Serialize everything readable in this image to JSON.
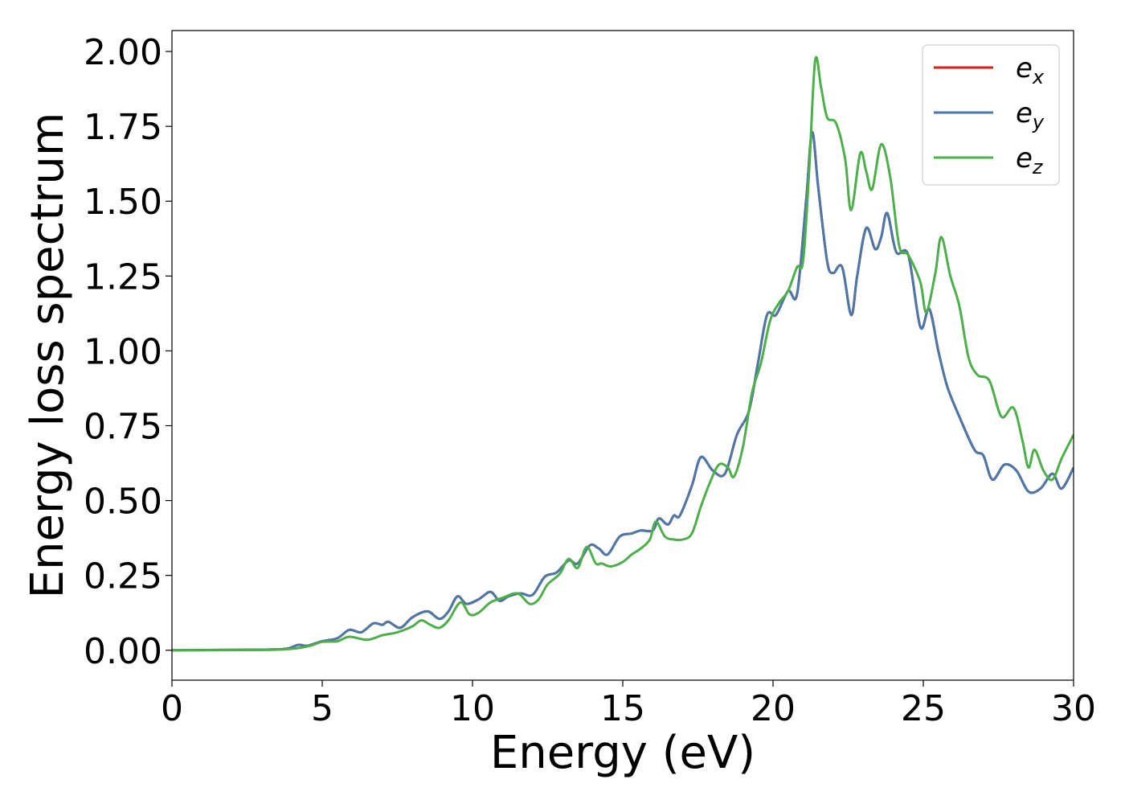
{
  "chart_data": {
    "type": "line",
    "xlabel": "Energy (eV)",
    "ylabel": "Energy loss spectrum",
    "xlim": [
      0,
      30
    ],
    "ylim": [
      -0.1,
      2.07
    ],
    "xticks": [
      0,
      5,
      10,
      15,
      20,
      25,
      30
    ],
    "xtick_labels": [
      "0",
      "5",
      "10",
      "15",
      "20",
      "25",
      "30"
    ],
    "yticks": [
      0,
      0.25,
      0.5,
      0.75,
      1.0,
      1.25,
      1.5,
      1.75,
      2.0
    ],
    "ytick_labels": [
      "0.00",
      "0.25",
      "0.50",
      "0.75",
      "1.00",
      "1.25",
      "1.50",
      "1.75",
      "2.00"
    ],
    "grid": false,
    "legend_position": "top-right",
    "series": [
      {
        "name": "e_x",
        "label_base": "e",
        "label_sub": "x",
        "color": "#e41a1c",
        "points": [
          [
            0,
            0
          ],
          [
            3,
            0.002
          ],
          [
            3.8,
            0.005
          ],
          [
            4.2,
            0.018
          ],
          [
            4.5,
            0.015
          ],
          [
            5,
            0.03
          ],
          [
            5.5,
            0.04
          ],
          [
            5.9,
            0.068
          ],
          [
            6.3,
            0.06
          ],
          [
            6.7,
            0.09
          ],
          [
            7.0,
            0.085
          ],
          [
            7.2,
            0.095
          ],
          [
            7.6,
            0.075
          ],
          [
            8.0,
            0.11
          ],
          [
            8.5,
            0.13
          ],
          [
            8.9,
            0.105
          ],
          [
            9.2,
            0.13
          ],
          [
            9.5,
            0.18
          ],
          [
            9.8,
            0.155
          ],
          [
            10.2,
            0.17
          ],
          [
            10.6,
            0.195
          ],
          [
            10.9,
            0.165
          ],
          [
            11.2,
            0.18
          ],
          [
            11.6,
            0.19
          ],
          [
            12.0,
            0.185
          ],
          [
            12.4,
            0.245
          ],
          [
            12.8,
            0.26
          ],
          [
            13.2,
            0.3
          ],
          [
            13.5,
            0.29
          ],
          [
            13.9,
            0.35
          ],
          [
            14.2,
            0.34
          ],
          [
            14.5,
            0.32
          ],
          [
            14.9,
            0.38
          ],
          [
            15.3,
            0.39
          ],
          [
            15.6,
            0.4
          ],
          [
            16.0,
            0.4
          ],
          [
            16.2,
            0.44
          ],
          [
            16.5,
            0.42
          ],
          [
            16.7,
            0.45
          ],
          [
            16.9,
            0.45
          ],
          [
            17.3,
            0.55
          ],
          [
            17.6,
            0.645
          ],
          [
            18.0,
            0.6
          ],
          [
            18.4,
            0.59
          ],
          [
            18.8,
            0.72
          ],
          [
            19.2,
            0.8
          ],
          [
            19.5,
            0.96
          ],
          [
            19.8,
            1.12
          ],
          [
            20.1,
            1.12
          ],
          [
            20.5,
            1.2
          ],
          [
            20.8,
            1.19
          ],
          [
            21.1,
            1.5
          ],
          [
            21.3,
            1.73
          ],
          [
            21.5,
            1.55
          ],
          [
            21.8,
            1.3
          ],
          [
            22.0,
            1.26
          ],
          [
            22.3,
            1.28
          ],
          [
            22.6,
            1.12
          ],
          [
            22.8,
            1.25
          ],
          [
            23.1,
            1.41
          ],
          [
            23.4,
            1.34
          ],
          [
            23.6,
            1.38
          ],
          [
            23.8,
            1.46
          ],
          [
            24.1,
            1.33
          ],
          [
            24.5,
            1.32
          ],
          [
            24.9,
            1.08
          ],
          [
            25.2,
            1.14
          ],
          [
            25.5,
            1.0
          ],
          [
            25.8,
            0.88
          ],
          [
            26.2,
            0.78
          ],
          [
            26.7,
            0.67
          ],
          [
            27.0,
            0.65
          ],
          [
            27.3,
            0.57
          ],
          [
            27.7,
            0.62
          ],
          [
            28.1,
            0.6
          ],
          [
            28.5,
            0.53
          ],
          [
            28.9,
            0.54
          ],
          [
            29.3,
            0.59
          ],
          [
            29.6,
            0.54
          ],
          [
            30.0,
            0.61
          ]
        ]
      },
      {
        "name": "e_y",
        "label_base": "e",
        "label_sub": "y",
        "color": "#4a78a8",
        "points": [
          [
            0,
            0
          ],
          [
            3,
            0.002
          ],
          [
            3.8,
            0.005
          ],
          [
            4.2,
            0.018
          ],
          [
            4.5,
            0.015
          ],
          [
            5,
            0.03
          ],
          [
            5.5,
            0.04
          ],
          [
            5.9,
            0.068
          ],
          [
            6.3,
            0.06
          ],
          [
            6.7,
            0.09
          ],
          [
            7.0,
            0.085
          ],
          [
            7.2,
            0.095
          ],
          [
            7.6,
            0.075
          ],
          [
            8.0,
            0.11
          ],
          [
            8.5,
            0.13
          ],
          [
            8.9,
            0.105
          ],
          [
            9.2,
            0.13
          ],
          [
            9.5,
            0.18
          ],
          [
            9.8,
            0.155
          ],
          [
            10.2,
            0.17
          ],
          [
            10.6,
            0.195
          ],
          [
            10.9,
            0.165
          ],
          [
            11.2,
            0.18
          ],
          [
            11.6,
            0.19
          ],
          [
            12.0,
            0.185
          ],
          [
            12.4,
            0.245
          ],
          [
            12.8,
            0.26
          ],
          [
            13.2,
            0.3
          ],
          [
            13.5,
            0.29
          ],
          [
            13.9,
            0.35
          ],
          [
            14.2,
            0.34
          ],
          [
            14.5,
            0.32
          ],
          [
            14.9,
            0.38
          ],
          [
            15.3,
            0.39
          ],
          [
            15.6,
            0.4
          ],
          [
            16.0,
            0.4
          ],
          [
            16.2,
            0.44
          ],
          [
            16.5,
            0.42
          ],
          [
            16.7,
            0.45
          ],
          [
            16.9,
            0.45
          ],
          [
            17.3,
            0.55
          ],
          [
            17.6,
            0.645
          ],
          [
            18.0,
            0.6
          ],
          [
            18.4,
            0.59
          ],
          [
            18.8,
            0.72
          ],
          [
            19.2,
            0.8
          ],
          [
            19.5,
            0.96
          ],
          [
            19.8,
            1.12
          ],
          [
            20.1,
            1.12
          ],
          [
            20.5,
            1.2
          ],
          [
            20.8,
            1.19
          ],
          [
            21.1,
            1.5
          ],
          [
            21.3,
            1.73
          ],
          [
            21.5,
            1.55
          ],
          [
            21.8,
            1.3
          ],
          [
            22.0,
            1.26
          ],
          [
            22.3,
            1.28
          ],
          [
            22.6,
            1.12
          ],
          [
            22.8,
            1.25
          ],
          [
            23.1,
            1.41
          ],
          [
            23.4,
            1.34
          ],
          [
            23.6,
            1.38
          ],
          [
            23.8,
            1.46
          ],
          [
            24.1,
            1.33
          ],
          [
            24.5,
            1.32
          ],
          [
            24.9,
            1.08
          ],
          [
            25.2,
            1.14
          ],
          [
            25.5,
            1.0
          ],
          [
            25.8,
            0.88
          ],
          [
            26.2,
            0.78
          ],
          [
            26.7,
            0.67
          ],
          [
            27.0,
            0.65
          ],
          [
            27.3,
            0.57
          ],
          [
            27.7,
            0.62
          ],
          [
            28.1,
            0.6
          ],
          [
            28.5,
            0.53
          ],
          [
            28.9,
            0.54
          ],
          [
            29.3,
            0.59
          ],
          [
            29.6,
            0.54
          ],
          [
            30.0,
            0.61
          ]
        ]
      },
      {
        "name": "e_z",
        "label_base": "e",
        "label_sub": "z",
        "color": "#4daf4a",
        "points": [
          [
            0,
            0
          ],
          [
            3,
            0.001
          ],
          [
            4,
            0.005
          ],
          [
            4.6,
            0.015
          ],
          [
            5.0,
            0.028
          ],
          [
            5.5,
            0.03
          ],
          [
            5.9,
            0.045
          ],
          [
            6.5,
            0.035
          ],
          [
            7.0,
            0.05
          ],
          [
            7.5,
            0.06
          ],
          [
            8.0,
            0.08
          ],
          [
            8.3,
            0.1
          ],
          [
            8.6,
            0.085
          ],
          [
            8.9,
            0.075
          ],
          [
            9.2,
            0.1
          ],
          [
            9.6,
            0.16
          ],
          [
            9.9,
            0.12
          ],
          [
            10.2,
            0.125
          ],
          [
            10.6,
            0.16
          ],
          [
            11.0,
            0.175
          ],
          [
            11.5,
            0.19
          ],
          [
            11.9,
            0.155
          ],
          [
            12.2,
            0.17
          ],
          [
            12.5,
            0.22
          ],
          [
            12.9,
            0.255
          ],
          [
            13.2,
            0.305
          ],
          [
            13.5,
            0.275
          ],
          [
            13.8,
            0.345
          ],
          [
            14.1,
            0.29
          ],
          [
            14.3,
            0.29
          ],
          [
            14.6,
            0.28
          ],
          [
            15.0,
            0.295
          ],
          [
            15.3,
            0.32
          ],
          [
            15.6,
            0.34
          ],
          [
            15.9,
            0.37
          ],
          [
            16.1,
            0.43
          ],
          [
            16.4,
            0.38
          ],
          [
            16.7,
            0.37
          ],
          [
            17.0,
            0.37
          ],
          [
            17.3,
            0.39
          ],
          [
            17.6,
            0.48
          ],
          [
            17.9,
            0.56
          ],
          [
            18.2,
            0.62
          ],
          [
            18.5,
            0.61
          ],
          [
            18.7,
            0.58
          ],
          [
            19.0,
            0.68
          ],
          [
            19.3,
            0.86
          ],
          [
            19.6,
            0.96
          ],
          [
            19.9,
            1.1
          ],
          [
            20.2,
            1.16
          ],
          [
            20.5,
            1.2
          ],
          [
            20.8,
            1.28
          ],
          [
            21.0,
            1.3
          ],
          [
            21.2,
            1.6
          ],
          [
            21.4,
            1.97
          ],
          [
            21.6,
            1.88
          ],
          [
            21.8,
            1.78
          ],
          [
            22.1,
            1.76
          ],
          [
            22.4,
            1.64
          ],
          [
            22.6,
            1.47
          ],
          [
            22.9,
            1.66
          ],
          [
            23.1,
            1.6
          ],
          [
            23.3,
            1.54
          ],
          [
            23.6,
            1.69
          ],
          [
            23.9,
            1.58
          ],
          [
            24.2,
            1.35
          ],
          [
            24.5,
            1.32
          ],
          [
            24.9,
            1.23
          ],
          [
            25.1,
            1.13
          ],
          [
            25.4,
            1.26
          ],
          [
            25.6,
            1.38
          ],
          [
            25.9,
            1.25
          ],
          [
            26.2,
            1.15
          ],
          [
            26.5,
            0.98
          ],
          [
            26.8,
            0.92
          ],
          [
            27.2,
            0.9
          ],
          [
            27.6,
            0.78
          ],
          [
            28.0,
            0.81
          ],
          [
            28.3,
            0.7
          ],
          [
            28.5,
            0.61
          ],
          [
            28.7,
            0.67
          ],
          [
            29.0,
            0.6
          ],
          [
            29.3,
            0.57
          ],
          [
            29.6,
            0.64
          ],
          [
            30.0,
            0.72
          ]
        ]
      }
    ]
  }
}
